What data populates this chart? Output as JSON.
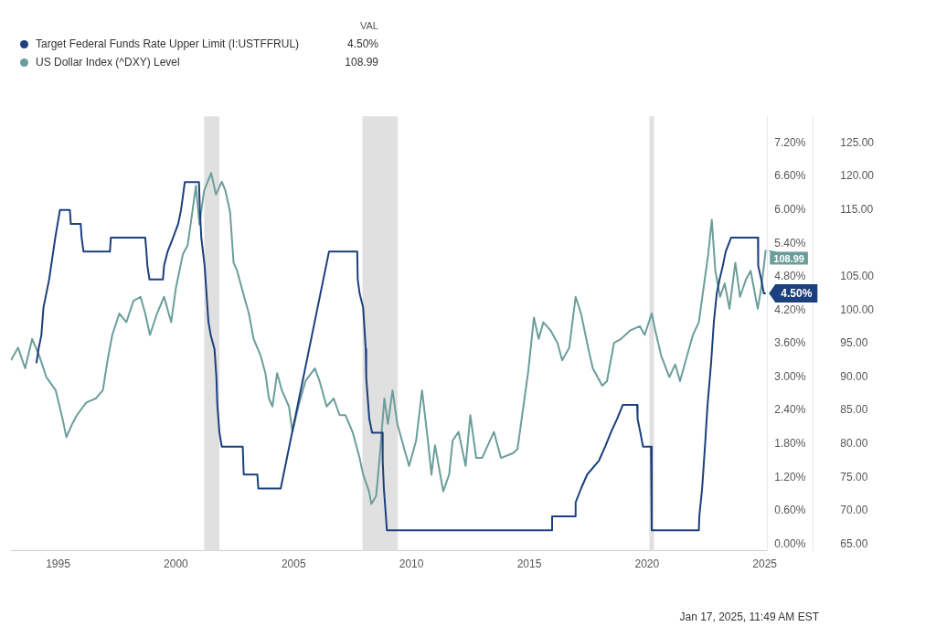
{
  "chart_data": {
    "type": "line",
    "legend": "top left",
    "marker": "none",
    "line_style": "solid",
    "grid": false,
    "annotations": [
      "VAL",
      "Jan 17, 2025, 11:49 AM EST"
    ],
    "xlim": [
      1993,
      2025.1
    ],
    "xticks": [
      1995,
      2000,
      2005,
      2010,
      2015,
      2020,
      2025
    ],
    "ylim": [
      -0.12,
      7.68
    ],
    "yticks": [
      {
        "value": 0,
        "label": "0.00%"
      },
      {
        "value": 0.6,
        "label": "0.60%"
      },
      {
        "value": 1.2,
        "label": "1.20%"
      },
      {
        "value": 1.8,
        "label": "1.80%"
      },
      {
        "value": 2.4,
        "label": "2.40%"
      },
      {
        "value": 3,
        "label": "3.00%"
      },
      {
        "value": 3.6,
        "label": "3.60%"
      },
      {
        "value": 4.2,
        "label": "4.20%"
      },
      {
        "value": 4.8,
        "label": "4.80%"
      },
      {
        "value": 5.4,
        "label": "5.40%"
      },
      {
        "value": 6,
        "label": "6.00%"
      },
      {
        "value": 6.6,
        "label": "6.60%"
      },
      {
        "value": 7.2,
        "label": "7.20%"
      }
    ],
    "y2lim": [
      64,
      129
    ],
    "y2ticks": [
      {
        "value": 65,
        "label": "65.00"
      },
      {
        "value": 70,
        "label": "70.00"
      },
      {
        "value": 75,
        "label": "75.00"
      },
      {
        "value": 80,
        "label": "80.00"
      },
      {
        "value": 85,
        "label": "85.00"
      },
      {
        "value": 90,
        "label": "90.00"
      },
      {
        "value": 95,
        "label": "95.00"
      },
      {
        "value": 100,
        "label": "100.00"
      },
      {
        "value": 105,
        "label": "105.00"
      },
      {
        "value": 115,
        "label": "115.00"
      },
      {
        "value": 120,
        "label": "120.00"
      },
      {
        "value": 125,
        "label": "125.00"
      }
    ],
    "bands": [
      {
        "axis": "x",
        "from": 2001.2,
        "to": 2001.85,
        "color": "#e0e0e0"
      },
      {
        "axis": "x",
        "from": 2007.92,
        "to": 2009.42,
        "color": "#e0e0e0"
      },
      {
        "axis": "x",
        "from": 2020.1,
        "to": 2020.3,
        "color": "#e0e0e0"
      }
    ],
    "series": [
      {
        "name": "Target Federal Funds Rate Upper Limit (I:USTFFRUL)",
        "color": "#1c3f7d",
        "axis": "y",
        "x": [
          1994.08,
          1994.17,
          1994.29,
          1994.38,
          1994.62,
          1994.88,
          1995.08,
          1995.5,
          1995.54,
          1995.96,
          1996.0,
          1996.08,
          1997.2,
          1997.24,
          1998.7,
          1998.75,
          1998.79,
          1998.88,
          1999.45,
          1999.5,
          1999.65,
          1999.88,
          2000.1,
          2000.22,
          2000.38,
          2000.98,
          2001.02,
          2001.08,
          2001.22,
          2001.3,
          2001.38,
          2001.48,
          2001.64,
          2001.72,
          2001.76,
          2001.85,
          2001.95,
          2002.84,
          2002.88,
          2003.46,
          2003.5,
          2004.45,
          2006.5,
          2007.7,
          2007.72,
          2007.8,
          2007.95,
          2008.06,
          2008.08,
          2008.21,
          2008.33,
          2008.77,
          2008.78,
          2008.83,
          2008.96,
          2015.96,
          2015.97,
          2016.96,
          2016.97,
          2017.2,
          2017.46,
          2017.96,
          2018.22,
          2018.46,
          2018.73,
          2018.97,
          2019.58,
          2019.6,
          2019.72,
          2019.83,
          2020.17,
          2020.2,
          2022.2,
          2022.22,
          2022.34,
          2022.46,
          2022.57,
          2022.72,
          2022.84,
          2022.96,
          2023.08,
          2023.22,
          2023.34,
          2023.57,
          2024.71,
          2024.72,
          2024.85,
          2024.96,
          2025.04
        ],
        "values": [
          3.25,
          3.5,
          3.75,
          4.25,
          4.75,
          5.5,
          6.0,
          6.0,
          5.75,
          5.75,
          5.5,
          5.25,
          5.25,
          5.5,
          5.5,
          5.25,
          5.0,
          4.75,
          4.75,
          5.0,
          5.25,
          5.5,
          5.75,
          6.0,
          6.5,
          6.5,
          6.0,
          5.5,
          5.0,
          4.5,
          4.0,
          3.75,
          3.5,
          3.0,
          2.5,
          2.0,
          1.75,
          1.75,
          1.25,
          1.25,
          1.0,
          1.0,
          5.25,
          5.25,
          4.75,
          4.5,
          4.25,
          3.5,
          3.0,
          2.25,
          2.0,
          2.0,
          1.5,
          1.0,
          0.25,
          0.25,
          0.5,
          0.5,
          0.75,
          1.0,
          1.25,
          1.5,
          1.75,
          2.0,
          2.25,
          2.5,
          2.5,
          2.25,
          2.0,
          1.75,
          1.75,
          0.25,
          0.25,
          0.5,
          1.0,
          1.75,
          2.5,
          3.25,
          4.0,
          4.5,
          4.75,
          5.0,
          5.25,
          5.5,
          5.5,
          5.0,
          4.75,
          4.5,
          4.5
        ],
        "value_labels": [
          null,
          null,
          null,
          null,
          null,
          null,
          null,
          null,
          null,
          null,
          null,
          null,
          null,
          null,
          null,
          null,
          null,
          null,
          null,
          null,
          null,
          null,
          null,
          null,
          null,
          null,
          null,
          null,
          null,
          null,
          null,
          null,
          null,
          null,
          null,
          null,
          null,
          null,
          null,
          null,
          null,
          null,
          null,
          null,
          null,
          null,
          null,
          null,
          null,
          null,
          null,
          null,
          null,
          null,
          null,
          null,
          null,
          null,
          null,
          null,
          null,
          null,
          null,
          null,
          null,
          null,
          null,
          null,
          null,
          null,
          null,
          null,
          null,
          null,
          null,
          null,
          null,
          null,
          null,
          null,
          null,
          null,
          null,
          null,
          null,
          null,
          null,
          null,
          "4.50%"
        ]
      },
      {
        "name": "US Dollar Index (^DXY) Level",
        "color": "#6b9e9b",
        "axis": "y2",
        "x": [
          1993.0,
          1993.3,
          1993.6,
          1993.9,
          1994.2,
          1994.5,
          1994.9,
          1995.2,
          1995.35,
          1995.6,
          1995.8,
          1996.2,
          1996.6,
          1996.9,
          1997.1,
          1997.3,
          1997.6,
          1997.9,
          1998.2,
          1998.5,
          1998.7,
          1998.9,
          1999.2,
          1999.5,
          1999.8,
          2000.0,
          2000.3,
          2000.5,
          2000.7,
          2000.85,
          2001.0,
          2001.2,
          2001.5,
          2001.7,
          2001.95,
          2002.1,
          2002.3,
          2002.45,
          2002.6,
          2002.9,
          2003.1,
          2003.3,
          2003.6,
          2003.8,
          2003.95,
          2004.1,
          2004.3,
          2004.5,
          2004.8,
          2004.95,
          2005.2,
          2005.5,
          2005.9,
          2006.1,
          2006.4,
          2006.7,
          2006.95,
          2007.2,
          2007.5,
          2007.8,
          2007.95,
          2008.2,
          2008.3,
          2008.5,
          2008.65,
          2008.85,
          2009.0,
          2009.2,
          2009.4,
          2009.7,
          2009.9,
          2010.2,
          2010.45,
          2010.7,
          2010.85,
          2011.0,
          2011.35,
          2011.6,
          2011.75,
          2012.0,
          2012.3,
          2012.5,
          2012.75,
          2013.0,
          2013.5,
          2013.8,
          2014.3,
          2014.5,
          2014.7,
          2014.95,
          2015.2,
          2015.4,
          2015.6,
          2015.9,
          2016.2,
          2016.4,
          2016.7,
          2016.97,
          2017.2,
          2017.5,
          2017.7,
          2018.1,
          2018.3,
          2018.6,
          2018.9,
          2019.3,
          2019.7,
          2019.9,
          2020.2,
          2020.35,
          2020.6,
          2020.95,
          2021.2,
          2021.4,
          2021.7,
          2021.95,
          2022.2,
          2022.4,
          2022.6,
          2022.75,
          2022.9,
          2023.1,
          2023.3,
          2023.5,
          2023.75,
          2023.95,
          2024.2,
          2024.4,
          2024.7,
          2024.85,
          2025.04
        ],
        "values": [
          92.5,
          94.4,
          91.3,
          95.7,
          93.2,
          90,
          88,
          83.6,
          81,
          83,
          84.3,
          86.2,
          86.8,
          88,
          92.5,
          96.3,
          99.5,
          98.2,
          101.4,
          102,
          99.5,
          96.3,
          99.5,
          102,
          98.2,
          103.3,
          108.4,
          109.7,
          114.7,
          118.6,
          112.8,
          117.9,
          120.5,
          117.3,
          119.2,
          117.9,
          114.7,
          107.1,
          105.9,
          102,
          99.5,
          95.7,
          93.2,
          90.6,
          86.8,
          85.6,
          90.6,
          88,
          85.6,
          81.8,
          85.6,
          89.4,
          91.3,
          89.4,
          85.6,
          86.8,
          84.3,
          84.3,
          81.8,
          77.9,
          75.4,
          72.9,
          71,
          72.2,
          77.9,
          86.8,
          83,
          88,
          83,
          79.2,
          76.7,
          80.5,
          88,
          80.5,
          75.4,
          79.8,
          72.9,
          75.4,
          80.5,
          81.8,
          76.7,
          84.3,
          77.9,
          77.9,
          81.8,
          77.9,
          78.6,
          79.2,
          84.3,
          90.6,
          98.9,
          95.7,
          98.2,
          97,
          95.1,
          92.5,
          94.4,
          102,
          99.5,
          94.4,
          91.3,
          88.7,
          89.4,
          95.1,
          95.7,
          97,
          97.6,
          96.3,
          99.5,
          97,
          93.2,
          90,
          91.9,
          89.4,
          93.2,
          96.3,
          98.2,
          103.3,
          108.4,
          113.5,
          105.9,
          102,
          104,
          100.2,
          107.1,
          102,
          104.6,
          105.9,
          100.2,
          103.3,
          108.99
        ],
        "value_labels": [
          null,
          null,
          null,
          null,
          null,
          null,
          null,
          null,
          null,
          null,
          null,
          null,
          null,
          null,
          null,
          null,
          null,
          null,
          null,
          null,
          null,
          null,
          null,
          null,
          null,
          null,
          null,
          null,
          null,
          null,
          null,
          null,
          null,
          null,
          null,
          null,
          null,
          null,
          null,
          null,
          null,
          null,
          null,
          null,
          null,
          null,
          null,
          null,
          null,
          null,
          null,
          null,
          null,
          null,
          null,
          null,
          null,
          null,
          null,
          null,
          null,
          null,
          null,
          null,
          null,
          null,
          null,
          null,
          null,
          null,
          null,
          null,
          null,
          null,
          null,
          null,
          null,
          null,
          null,
          null,
          null,
          null,
          null,
          null,
          null,
          null,
          null,
          null,
          null,
          null,
          null,
          null,
          null,
          null,
          null,
          null,
          null,
          null,
          null,
          null,
          null,
          null,
          null,
          null,
          null,
          null,
          null,
          null,
          null,
          null,
          null,
          null,
          null,
          null,
          null,
          null,
          null,
          null,
          null,
          null,
          null,
          null,
          null,
          null,
          null,
          null,
          null,
          null,
          null,
          null,
          "108.99"
        ]
      }
    ]
  }
}
